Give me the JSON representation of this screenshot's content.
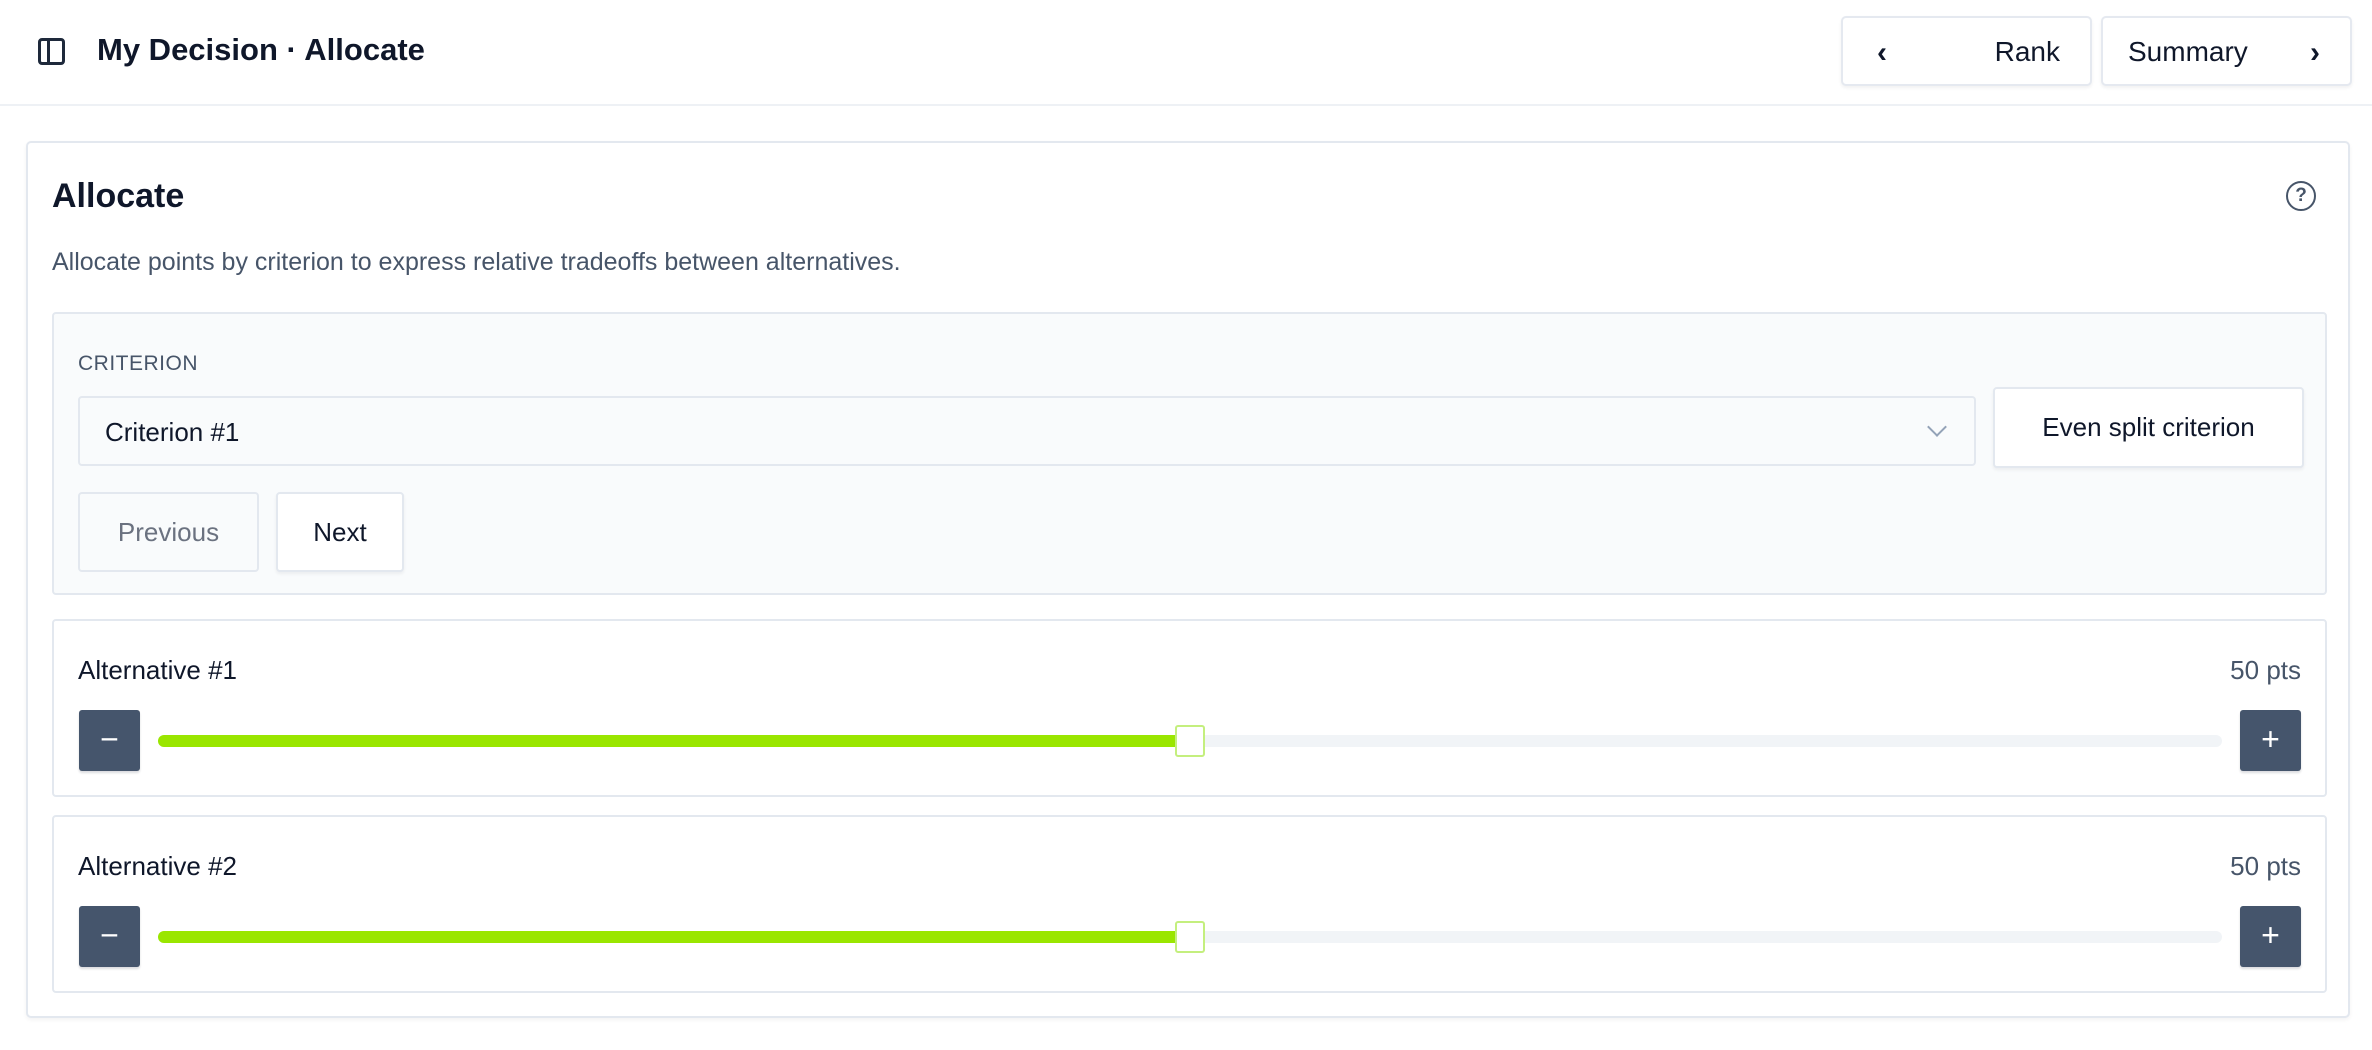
{
  "header": {
    "title": "My Decision · Allocate",
    "sidebar_icon": "sidebar-toggle-icon",
    "prev_label": "Rank",
    "next_label": "Summary"
  },
  "main": {
    "heading": "Allocate",
    "help_icon": "?",
    "description": "Allocate points by criterion to express relative tradeoffs between alternatives.",
    "criterion": {
      "label": "CRITERION",
      "selected": "Criterion #1",
      "even_split_label": "Even split criterion",
      "previous_label": "Previous",
      "next_label": "Next"
    },
    "alternatives": [
      {
        "name": "Alternative #1",
        "points_label": "50 pts",
        "value": 50,
        "max": 100
      },
      {
        "name": "Alternative #2",
        "points_label": "50 pts",
        "value": 50,
        "max": 100
      }
    ],
    "minus": "−",
    "plus": "+"
  },
  "colors": {
    "accent": "#9ae600",
    "button_dark": "#45556c"
  }
}
